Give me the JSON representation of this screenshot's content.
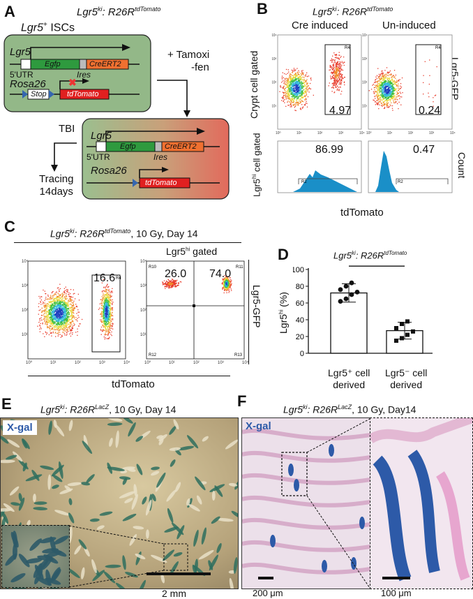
{
  "panels": {
    "A": {
      "letter": "A",
      "title": "Lgr5ki: R26RtdTomato",
      "title_base": "Lgr5",
      "title_sup1": "ki",
      "title_mid": ": R26R",
      "title_sup2": "tdTomato",
      "lgr5_iscs_base": "Lgr5",
      "lgr5_iscs_sup": "+",
      "lgr5_iscs_rest": " ISCs",
      "gene_lgr5": "Lgr5",
      "utr": "5'UTR",
      "egfp": "Egfp",
      "creert2": "CreERT2",
      "ires": "Ires",
      "rosa26": "Rosa26",
      "stop": "Stop",
      "tdtomato": "tdTomato",
      "tamoxifen_line1": "+ Tamoxi",
      "tamoxifen_line2": "-fen",
      "tbi": "TBI",
      "tracing_line1": "Tracing",
      "tracing_line2": "14days"
    },
    "B": {
      "letter": "B",
      "title_base": "Lgr5",
      "title_sup1": "ki",
      "title_mid": ": R26R",
      "title_sup2": "tdTomato",
      "col1": "Cre induced",
      "col2": "Un-induced",
      "row1_label": "Crypt cell gated",
      "row2_label_base": "Lgr5",
      "row2_label_sup": "hi",
      "row2_label_rest": " cell gated",
      "right_label1": "Lgr5-GFP",
      "right_label2": "Count",
      "gate_pct_induced": "4.97",
      "gate_pct_uninduced": "0.24",
      "hist_pct_induced": "86.99",
      "hist_pct_uninduced": "0.47",
      "xlabel": "tdTomato",
      "gate_name_R4": "R4",
      "gate_name_R2": "R2"
    },
    "C": {
      "letter": "C",
      "title_base": "Lgr5",
      "title_sup1": "ki",
      "title_mid": ": R26R",
      "title_sup2": "tdTomato",
      "title_rest": ", 10 Gy, Day 14",
      "gated_base": "Lgr5",
      "gated_sup": "hi",
      "gated_rest": " gated",
      "left_gate_pct": "16.6",
      "q_R10": "26.0",
      "q_R11": "74.0",
      "xlabel": "tdTomato",
      "right_label": "Lgr5-GFP",
      "gate_names": [
        "R4",
        "R10",
        "R11",
        "R12",
        "R13"
      ]
    },
    "D": {
      "letter": "D",
      "title_base": "Lgr5",
      "title_sup1": "ki",
      "title_mid": ": R26R",
      "title_sup2": "tdTomato",
      "ylabel_base": "Lgr5",
      "ylabel_sup": "hi",
      "ylabel_rest": " (%)",
      "significance": "***",
      "cat1_line1": "Lgr5⁺ cell",
      "cat1_line2": "derived",
      "cat2_line1": "Lgr5⁻ cell",
      "cat2_line2": "derived"
    },
    "E": {
      "letter": "E",
      "title_base": "Lgr5",
      "title_sup1": "ki",
      "title_mid": ": R26R",
      "title_sup2": "LacZ",
      "title_rest": ", 10 Gy, Day 14",
      "stain_label": "X-gal",
      "scalebar": "2 mm"
    },
    "F": {
      "letter": "F",
      "title_base": "Lgr5",
      "title_sup1": "ki",
      "title_mid": ": R26R",
      "title_sup2": "LacZ",
      "title_rest": ", 10 Gy, Day14",
      "stain_label": "X-gal",
      "scalebar_left": "200 μm",
      "scalebar_right": "100 μm"
    }
  },
  "colors": {
    "green_cell": "#93b888",
    "red_cell": "#e06060",
    "egfp_box": "#2e9a3e",
    "cre_box": "#f07030",
    "tdtomato_box": "#e02020",
    "hist_fill": "#1a8fc8",
    "xgal_blue": "#2d5aa8"
  },
  "chart_data": [
    {
      "type": "bar",
      "panel": "D",
      "categories": [
        "Lgr5⁺ cell derived",
        "Lgr5⁻ cell derived"
      ],
      "values": [
        72,
        27
      ],
      "error": [
        11,
        10
      ],
      "points": [
        [
          62,
          65,
          70,
          73,
          76,
          80,
          84
        ],
        [
          15,
          18,
          22,
          26,
          30,
          35,
          38
        ]
      ],
      "ylabel": "Lgr5hi (%)",
      "ylim": [
        0,
        100
      ],
      "yticks": [
        0,
        20,
        40,
        60,
        80,
        100
      ]
    },
    {
      "type": "scatter",
      "panel": "B-flow",
      "axis_ticks": [
        "10⁰",
        "10¹",
        "10²",
        "10³",
        "10⁴"
      ]
    }
  ]
}
